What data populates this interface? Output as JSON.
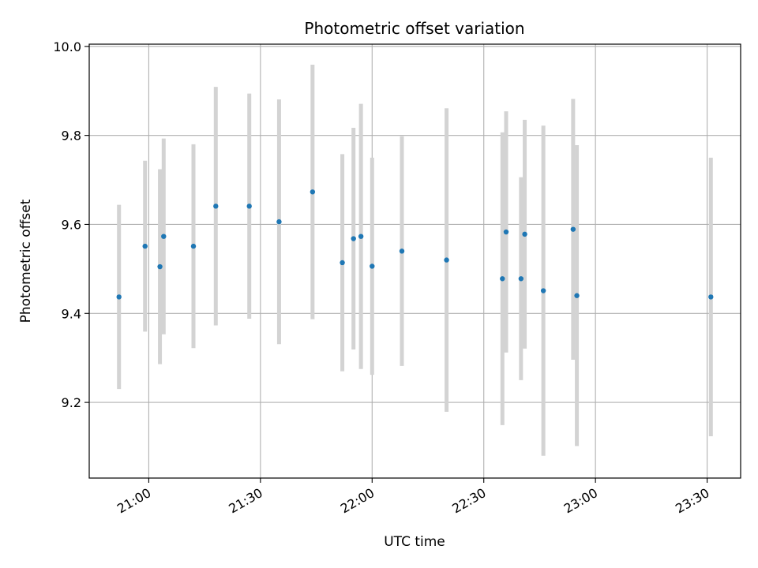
{
  "chart_data": {
    "type": "scatter",
    "title": "Photometric offset variation",
    "xlabel": "UTC time",
    "ylabel": "Photometric offset",
    "x_tick_labels": [
      "21:00",
      "21:30",
      "22:00",
      "22:30",
      "23:00",
      "23:30"
    ],
    "y_tick_labels": [
      "9.2",
      "9.4",
      "9.6",
      "9.8",
      "10.0"
    ],
    "y_ticks": [
      9.2,
      9.4,
      9.6,
      9.8,
      10.0
    ],
    "xlim": [
      "20:44",
      "23:39"
    ],
    "ylim": [
      9.03,
      10.005
    ],
    "grid": true,
    "point_color": "#1f77b4",
    "errorbar_color": "#d3d3d3",
    "series": [
      {
        "points": [
          {
            "x": "20:52",
            "y": 9.437,
            "err": 0.207
          },
          {
            "x": "20:59",
            "y": 9.551,
            "err": 0.192
          },
          {
            "x": "21:03",
            "y": 9.505,
            "err": 0.219
          },
          {
            "x": "21:04",
            "y": 9.573,
            "err": 0.22
          },
          {
            "x": "21:12",
            "y": 9.551,
            "err": 0.229
          },
          {
            "x": "21:18",
            "y": 9.641,
            "err": 0.268
          },
          {
            "x": "21:27",
            "y": 9.641,
            "err": 0.253
          },
          {
            "x": "21:35",
            "y": 9.606,
            "err": 0.275
          },
          {
            "x": "21:44",
            "y": 9.673,
            "err": 0.286
          },
          {
            "x": "21:52",
            "y": 9.514,
            "err": 0.244
          },
          {
            "x": "21:55",
            "y": 9.568,
            "err": 0.249
          },
          {
            "x": "21:57",
            "y": 9.573,
            "err": 0.298
          },
          {
            "x": "22:00",
            "y": 9.506,
            "err": 0.244
          },
          {
            "x": "22:08",
            "y": 9.54,
            "err": 0.258
          },
          {
            "x": "22:20",
            "y": 9.52,
            "err": 0.341
          },
          {
            "x": "22:35",
            "y": 9.478,
            "err": 0.329
          },
          {
            "x": "22:36",
            "y": 9.583,
            "err": 0.271
          },
          {
            "x": "22:40",
            "y": 9.478,
            "err": 0.228
          },
          {
            "x": "22:41",
            "y": 9.578,
            "err": 0.257
          },
          {
            "x": "22:46",
            "y": 9.451,
            "err": 0.371
          },
          {
            "x": "22:54",
            "y": 9.589,
            "err": 0.293
          },
          {
            "x": "22:55",
            "y": 9.44,
            "err": 0.338
          },
          {
            "x": "23:31",
            "y": 9.437,
            "err": 0.313
          }
        ]
      }
    ]
  }
}
